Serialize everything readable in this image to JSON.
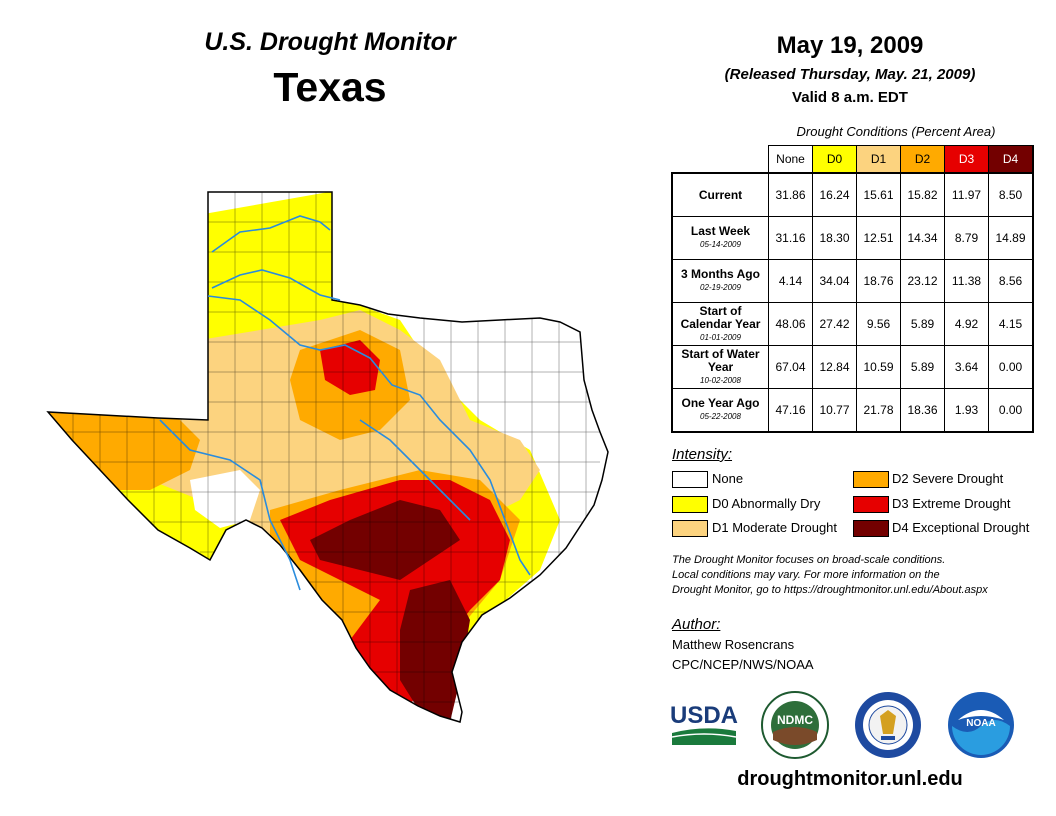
{
  "header": {
    "monitor_title": "U.S. Drought Monitor",
    "state_title": "Texas",
    "date": "May 19, 2009",
    "released": "(Released Thursday, May. 21, 2009)",
    "valid": "Valid 8 a.m. EDT"
  },
  "conditions_table": {
    "caption": "Drought Conditions (Percent Area)",
    "columns": [
      "None",
      "D0",
      "D1",
      "D2",
      "D3",
      "D4"
    ],
    "column_colors": [
      "#ffffff",
      "#ffff00",
      "#fcd37f",
      "#ffaa00",
      "#e60000",
      "#730000"
    ],
    "rows": [
      {
        "label": "Current",
        "sub": "",
        "values": [
          "31.86",
          "16.24",
          "15.61",
          "15.82",
          "11.97",
          "8.50"
        ]
      },
      {
        "label": "Last Week",
        "sub": "05-14-2009",
        "values": [
          "31.16",
          "18.30",
          "12.51",
          "14.34",
          "8.79",
          "14.89"
        ]
      },
      {
        "label": "3 Months Ago",
        "sub": "02-19-2009",
        "values": [
          "4.14",
          "34.04",
          "18.76",
          "23.12",
          "11.38",
          "8.56"
        ]
      },
      {
        "label": "Start of Calendar Year",
        "sub": "01-01-2009",
        "values": [
          "48.06",
          "27.42",
          "9.56",
          "5.89",
          "4.92",
          "4.15"
        ]
      },
      {
        "label": "Start of Water Year",
        "sub": "10-02-2008",
        "values": [
          "67.04",
          "12.84",
          "10.59",
          "5.89",
          "3.64",
          "0.00"
        ]
      },
      {
        "label": "One Year Ago",
        "sub": "05-22-2008",
        "values": [
          "47.16",
          "10.77",
          "21.78",
          "18.36",
          "1.93",
          "0.00"
        ]
      }
    ]
  },
  "legend": {
    "heading": "Intensity:",
    "items": [
      {
        "label": "None",
        "color": "#ffffff"
      },
      {
        "label": "D0 Abnormally Dry",
        "color": "#ffff00"
      },
      {
        "label": "D1 Moderate Drought",
        "color": "#fcd37f"
      },
      {
        "label": "D2 Severe Drought",
        "color": "#ffaa00"
      },
      {
        "label": "D3 Extreme Drought",
        "color": "#e60000"
      },
      {
        "label": "D4 Exceptional Drought",
        "color": "#730000"
      }
    ]
  },
  "note": {
    "line1": "The Drought Monitor focuses on broad-scale conditions.",
    "line2": "Local conditions may vary. For more information on the",
    "line3": "Drought Monitor, go to https://droughtmonitor.unl.edu/About.aspx"
  },
  "author": {
    "heading": "Author:",
    "name": "Matthew Rosencrans",
    "org": "CPC/NCEP/NWS/NOAA"
  },
  "logos": {
    "usda": "USDA",
    "ndmc": "NDMC",
    "noaa": "NOAA"
  },
  "footer": {
    "url": "droughtmonitor.unl.edu"
  }
}
